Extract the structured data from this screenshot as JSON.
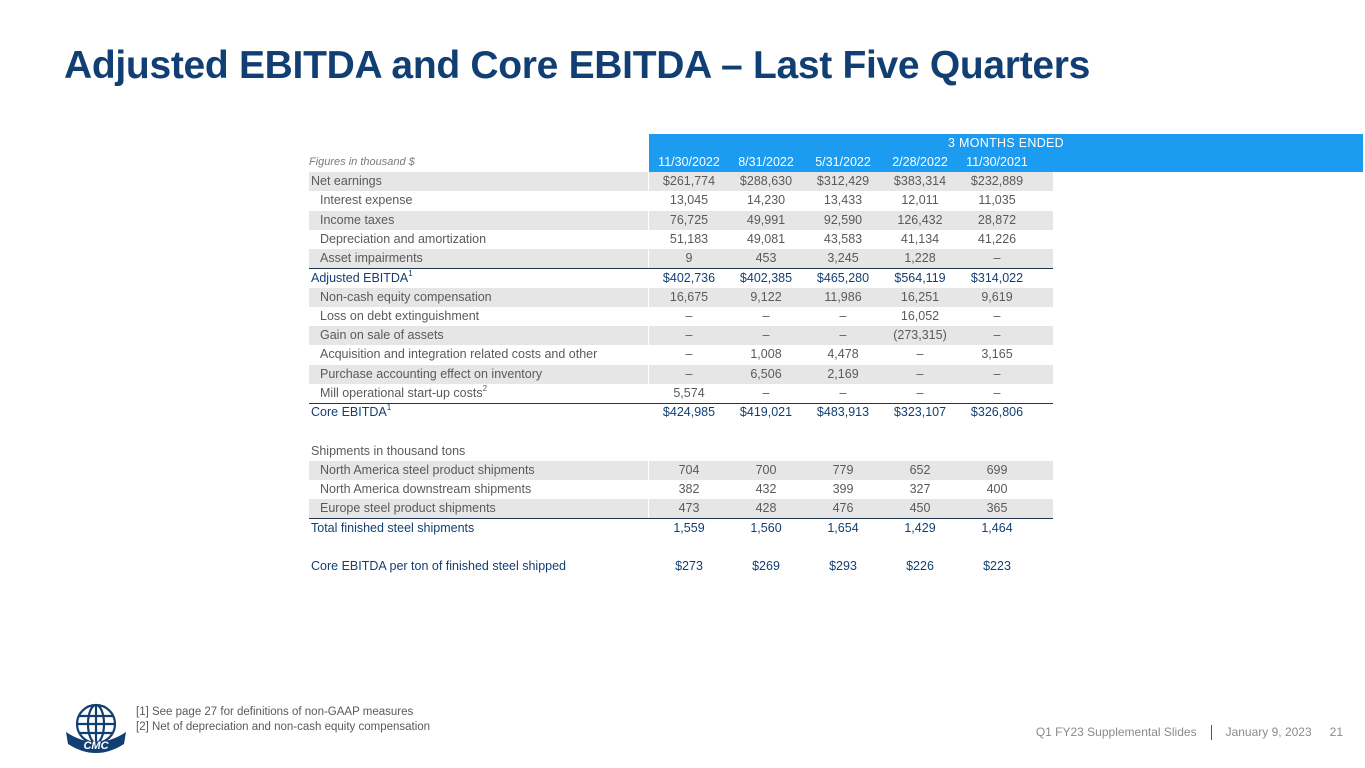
{
  "title": "Adjusted EBITDA and Core EBITDA – Last Five Quarters",
  "table": {
    "caption": "Figures in thousand $",
    "period_header": "3 MONTHS ENDED",
    "columns": [
      "11/30/2022",
      "8/31/2022",
      "5/31/2022",
      "2/28/2022",
      "11/30/2021"
    ],
    "rows": [
      {
        "label": "Net earnings",
        "indent": 0,
        "shade": true,
        "blue": false,
        "values": [
          "$261,774",
          "$288,630",
          "$312,429",
          "$383,314",
          "$232,889"
        ]
      },
      {
        "label": "Interest expense",
        "indent": 1,
        "shade": false,
        "blue": false,
        "values": [
          "13,045",
          "14,230",
          "13,433",
          "12,011",
          "11,035"
        ]
      },
      {
        "label": "Income taxes",
        "indent": 1,
        "shade": true,
        "blue": false,
        "values": [
          "76,725",
          "49,991",
          "92,590",
          "126,432",
          "28,872"
        ]
      },
      {
        "label": "Depreciation and amortization",
        "indent": 1,
        "shade": false,
        "blue": false,
        "values": [
          "51,183",
          "49,081",
          "43,583",
          "41,134",
          "41,226"
        ]
      },
      {
        "label": "Asset impairments",
        "indent": 1,
        "shade": true,
        "blue": false,
        "values": [
          "9",
          "453",
          "3,245",
          "1,228",
          "–"
        ]
      },
      {
        "label": "Adjusted EBITDA",
        "sup": "1",
        "indent": 0,
        "shade": false,
        "blue": true,
        "rule_top": true,
        "values": [
          "$402,736",
          "$402,385",
          "$465,280",
          "$564,119",
          "$314,022"
        ]
      },
      {
        "label": "Non-cash equity compensation",
        "indent": 1,
        "shade": true,
        "blue": false,
        "values": [
          "16,675",
          "9,122",
          "11,986",
          "16,251",
          "9,619"
        ]
      },
      {
        "label": "Loss on debt extinguishment",
        "indent": 1,
        "shade": false,
        "blue": false,
        "values": [
          "–",
          "–",
          "–",
          "16,052",
          "–"
        ]
      },
      {
        "label": "Gain on sale of assets",
        "indent": 1,
        "shade": true,
        "blue": false,
        "values": [
          "–",
          "–",
          "–",
          "(273,315)",
          "–"
        ]
      },
      {
        "label": "Acquisition and integration related costs and other",
        "indent": 1,
        "shade": false,
        "blue": false,
        "values": [
          "–",
          "1,008",
          "4,478",
          "–",
          "3,165"
        ]
      },
      {
        "label": "Purchase accounting effect on inventory",
        "indent": 1,
        "shade": true,
        "blue": false,
        "values": [
          "–",
          "6,506",
          "2,169",
          "–",
          "–"
        ]
      },
      {
        "label": "Mill operational start-up costs",
        "sup": "2",
        "indent": 1,
        "shade": false,
        "blue": false,
        "rule_bottom": true,
        "values": [
          "5,574",
          "–",
          "–",
          "–",
          "–"
        ]
      },
      {
        "label": "Core EBITDA",
        "sup": "1",
        "indent": 0,
        "shade": false,
        "blue": true,
        "values": [
          "$424,985",
          "$419,021",
          "$483,913",
          "$323,107",
          "$326,806"
        ]
      },
      {
        "label": "",
        "indent": 0,
        "shade": false,
        "blue": false,
        "values": [
          "",
          "",
          "",
          "",
          ""
        ]
      },
      {
        "label": "Shipments in thousand tons",
        "indent": 0,
        "shade": false,
        "blue": false,
        "values": [
          "",
          "",
          "",
          "",
          ""
        ]
      },
      {
        "label": "North America steel product shipments",
        "indent": 1,
        "shade": true,
        "blue": false,
        "values": [
          "704",
          "700",
          "779",
          "652",
          "699"
        ]
      },
      {
        "label": "North America downstream shipments",
        "indent": 1,
        "shade": false,
        "blue": false,
        "values": [
          "382",
          "432",
          "399",
          "327",
          "400"
        ]
      },
      {
        "label": "Europe steel product shipments",
        "indent": 1,
        "shade": true,
        "blue": false,
        "rule_bottom": true,
        "values": [
          "473",
          "428",
          "476",
          "450",
          "365"
        ]
      },
      {
        "label": "Total finished steel shipments",
        "indent": 0,
        "shade": false,
        "blue": true,
        "values": [
          "1,559",
          "1,560",
          "1,654",
          "1,429",
          "1,464"
        ]
      },
      {
        "label": "",
        "indent": 0,
        "shade": false,
        "blue": false,
        "values": [
          "",
          "",
          "",
          "",
          ""
        ]
      },
      {
        "label": "Core EBITDA per ton of finished steel shipped",
        "indent": 0,
        "shade": false,
        "blue": true,
        "values": [
          "$273",
          "$269",
          "$293",
          "$226",
          "$223"
        ]
      }
    ]
  },
  "footnotes": [
    "[1] See page 27 for definitions of non-GAAP measures",
    "[2] Net of depreciation and non-cash equity compensation"
  ],
  "logo_text": "CMC",
  "footer": {
    "deck": "Q1 FY23 Supplemental Slides",
    "date": "January 9, 2023",
    "page": "21"
  }
}
